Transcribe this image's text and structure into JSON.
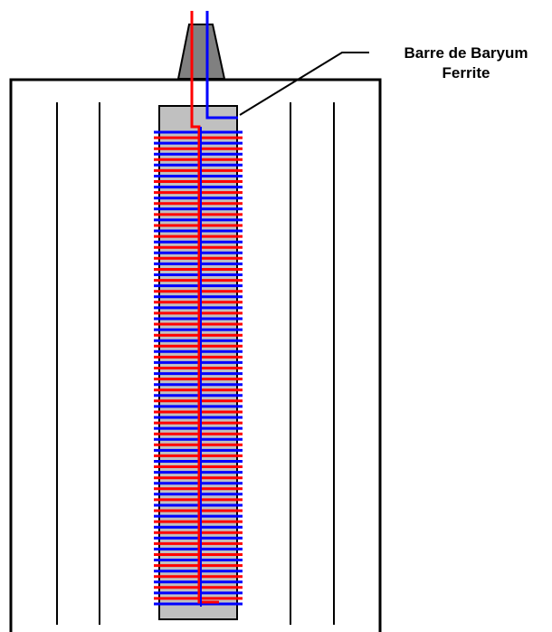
{
  "callout": {
    "line1": "Barre de Baryum",
    "line2": "Ferrite"
  },
  "colors": {
    "outline": "#000000",
    "rod_fill": "#c0c0c0",
    "cap_fill": "#808080",
    "wire_red": "#ff0000",
    "wire_blue": "#0000ff",
    "background": "#ffffff"
  },
  "coil": {
    "turns": 44
  }
}
